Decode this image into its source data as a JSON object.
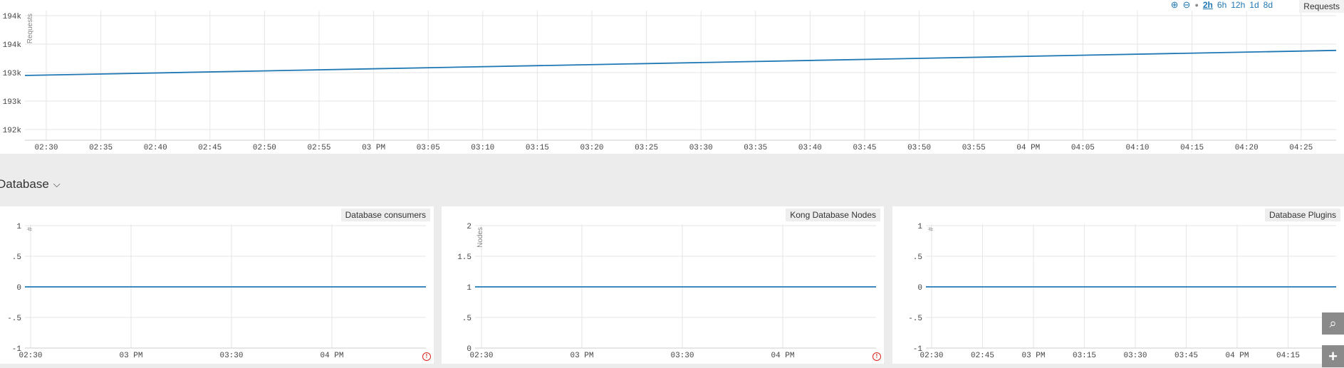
{
  "toolbar": {
    "zoom_in_icon": "zoom-in-icon",
    "zoom_out_icon": "zoom-out-icon",
    "ranges": [
      "2h",
      "6h",
      "12h",
      "1d",
      "8d"
    ],
    "active_range": "2h"
  },
  "section": {
    "title": "Database"
  },
  "colors": {
    "series": "#1f78b4",
    "grid": "#e6e6e6",
    "error": "#d9281f"
  },
  "chart_data": [
    {
      "type": "line",
      "title": "Requests",
      "ylabel": "Requests",
      "y_tick_labels": [
        "194k",
        "194k",
        "193k",
        "193k",
        "192k"
      ],
      "x_tick_labels": [
        "02:30",
        "02:35",
        "02:40",
        "02:45",
        "02:50",
        "02:55",
        "03 PM",
        "03:05",
        "03:10",
        "03:15",
        "03:20",
        "03:25",
        "03:30",
        "03:35",
        "03:40",
        "03:45",
        "03:50",
        "03:55",
        "04 PM",
        "04:05",
        "04:10",
        "04:15",
        "04:20",
        "04:25"
      ],
      "grid": true,
      "series": [
        {
          "x": [
            "02:30",
            "04:30"
          ],
          "values": [
            193150,
            193590
          ]
        }
      ]
    },
    {
      "type": "line",
      "title": "Database consumers",
      "ylabel": "#",
      "ylim": [
        -1,
        1
      ],
      "y_tick_labels": [
        "1",
        ".5",
        "0",
        "-.5",
        "-1"
      ],
      "x_tick_labels": [
        "02:30",
        "03 PM",
        "03:30",
        "04 PM"
      ],
      "grid": true,
      "series": [
        {
          "x": [
            "02:30",
            "04:30"
          ],
          "values": [
            0,
            0
          ]
        }
      ]
    },
    {
      "type": "line",
      "title": "Kong Database Nodes",
      "ylabel": "Nodes",
      "ylim": [
        0,
        2
      ],
      "y_tick_labels": [
        "2",
        "1.5",
        "1",
        ".5",
        "0"
      ],
      "x_tick_labels": [
        "02:30",
        "03 PM",
        "03:30",
        "04 PM"
      ],
      "grid": true,
      "series": [
        {
          "x": [
            "02:30",
            "04:30"
          ],
          "values": [
            1,
            1
          ]
        }
      ]
    },
    {
      "type": "line",
      "title": "Database Plugins",
      "ylabel": "#",
      "ylim": [
        -1,
        1
      ],
      "y_tick_labels": [
        "1",
        ".5",
        "0",
        "-.5",
        "-1"
      ],
      "x_tick_labels": [
        "02:30",
        "02:45",
        "03 PM",
        "03:15",
        "03:30",
        "03:45",
        "04 PM",
        "04:15"
      ],
      "grid": true,
      "series": [
        {
          "x": [
            "02:30",
            "04:30"
          ],
          "values": [
            0,
            0
          ]
        }
      ]
    }
  ]
}
